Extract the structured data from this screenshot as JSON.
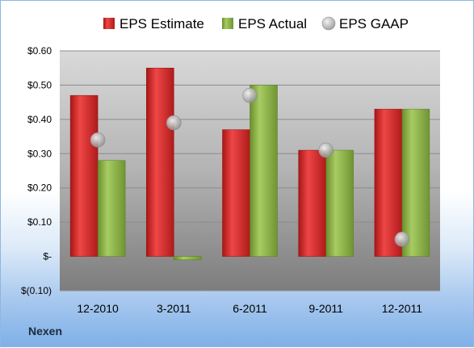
{
  "company": "Nexen",
  "chart_data": {
    "type": "bar",
    "categories": [
      "12-2010",
      "3-2011",
      "6-2011",
      "9-2011",
      "12-2011"
    ],
    "series": [
      {
        "name": "EPS Estimate",
        "values": [
          0.47,
          0.55,
          0.37,
          0.31,
          0.43
        ],
        "color": "#d42a2a"
      },
      {
        "name": "EPS Actual",
        "values": [
          0.28,
          -0.01,
          0.5,
          0.31,
          0.43
        ],
        "color": "#8db546"
      },
      {
        "name": "EPS GAAP",
        "values": [
          0.34,
          0.39,
          0.47,
          0.31,
          0.05
        ],
        "color": "#b9b9b9",
        "marker": "sphere"
      }
    ],
    "ylim": [
      -0.1,
      0.6
    ],
    "yticks": [
      0.6,
      0.5,
      0.4,
      0.3,
      0.2,
      0.1,
      0.0,
      -0.1
    ],
    "ytick_labels": [
      "$0.60",
      "$0.50",
      "$0.40",
      "$0.30",
      "$0.20",
      "$0.10",
      "$-",
      "$(0.10)"
    ],
    "legend_position": "top",
    "grid": true
  }
}
